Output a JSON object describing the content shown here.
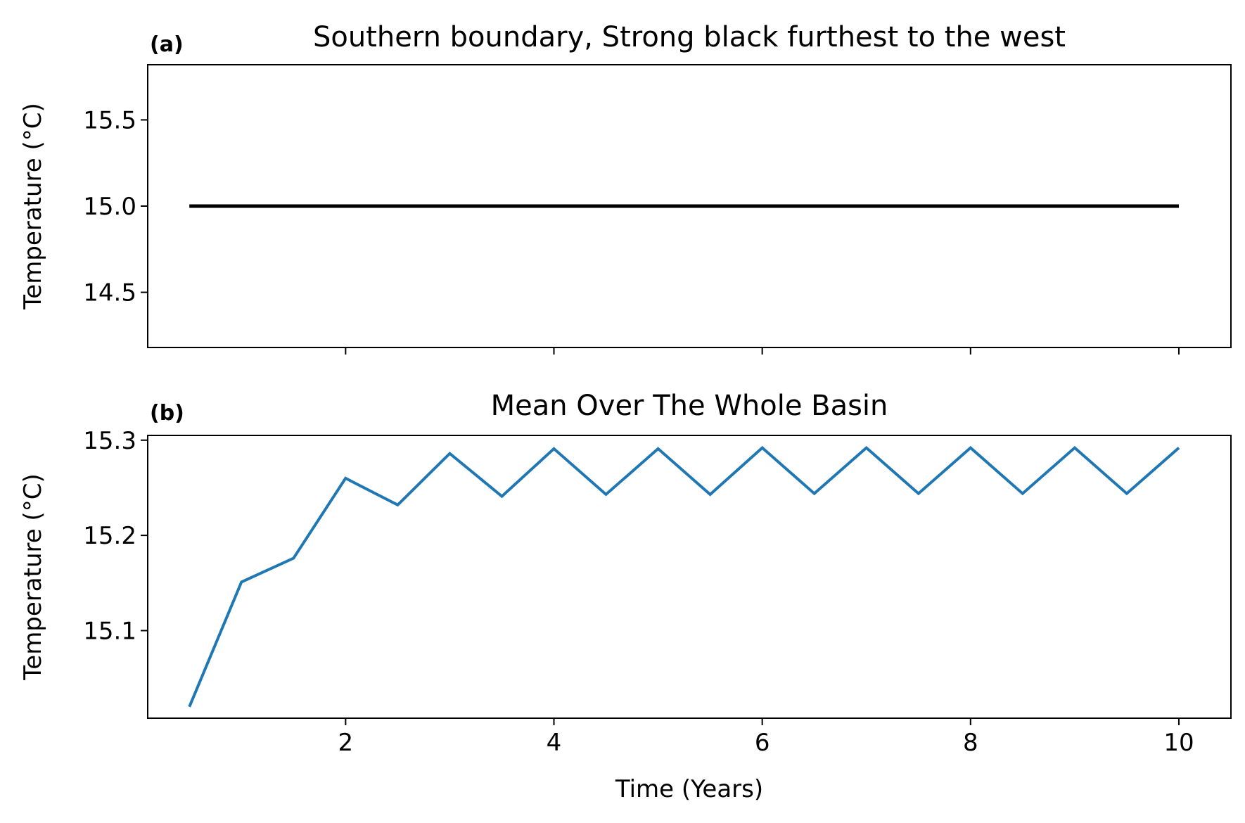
{
  "chart_data": [
    {
      "type": "line",
      "panel_label": "(a)",
      "title": "Southern boundary, Strong black furthest to the west",
      "xlabel": "",
      "ylabel": "Temperature (°C)",
      "xlim": [
        0.1,
        10.5
      ],
      "ylim": [
        14.18,
        15.82
      ],
      "xticks": [
        2,
        4,
        6,
        8,
        10
      ],
      "xtick_labels_visible": false,
      "yticks": [
        14.5,
        15.0,
        15.5
      ],
      "ytick_labels": [
        "14.5",
        "15.0",
        "15.5"
      ],
      "grid": false,
      "series": [
        {
          "color": "#000000",
          "x": [
            0.5,
            10
          ],
          "y": [
            15.0,
            15.0
          ]
        }
      ]
    },
    {
      "type": "line",
      "panel_label": "(b)",
      "title": "Mean Over The Whole Basin",
      "xlabel": "Time (Years)",
      "ylabel": "Temperature (°C)",
      "xlim": [
        0.1,
        10.5
      ],
      "ylim": [
        15.008,
        15.305
      ],
      "xticks": [
        2,
        4,
        6,
        8,
        10
      ],
      "xtick_labels": [
        "2",
        "4",
        "6",
        "8",
        "10"
      ],
      "yticks": [
        15.1,
        15.2,
        15.3
      ],
      "ytick_labels": [
        "15.1",
        "15.2",
        "15.3"
      ],
      "grid": false,
      "series": [
        {
          "color": "#1f77b4",
          "x": [
            0.5,
            1.0,
            1.5,
            2.0,
            2.5,
            3.0,
            3.5,
            4.0,
            4.5,
            5.0,
            5.5,
            6.0,
            6.5,
            7.0,
            7.5,
            8.0,
            8.5,
            9.0,
            9.5,
            10.0
          ],
          "y": [
            15.02,
            15.151,
            15.176,
            15.26,
            15.232,
            15.286,
            15.241,
            15.291,
            15.243,
            15.291,
            15.243,
            15.292,
            15.244,
            15.292,
            15.244,
            15.292,
            15.244,
            15.292,
            15.244,
            15.292
          ]
        }
      ]
    }
  ]
}
